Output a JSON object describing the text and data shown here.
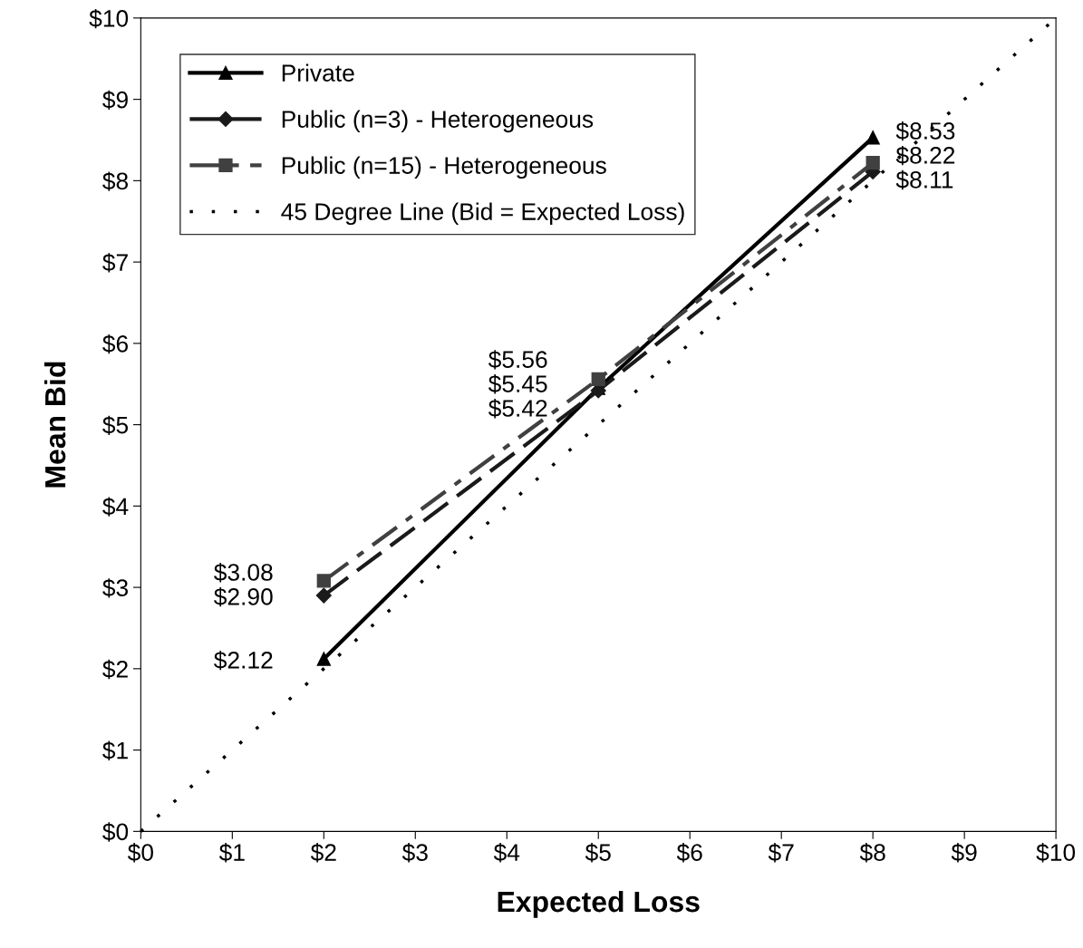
{
  "chart_data": {
    "type": "line",
    "xlabel": "Expected Loss",
    "ylabel": "Mean Bid",
    "xlim": [
      0,
      10
    ],
    "ylim": [
      0,
      10
    ],
    "xticks": [
      {
        "value": 0,
        "label": "$0"
      },
      {
        "value": 1,
        "label": "$1"
      },
      {
        "value": 2,
        "label": "$2"
      },
      {
        "value": 3,
        "label": "$3"
      },
      {
        "value": 4,
        "label": "$4"
      },
      {
        "value": 5,
        "label": "$5"
      },
      {
        "value": 6,
        "label": "$6"
      },
      {
        "value": 7,
        "label": "$7"
      },
      {
        "value": 8,
        "label": "$8"
      },
      {
        "value": 9,
        "label": "$9"
      },
      {
        "value": 10,
        "label": "$10"
      }
    ],
    "yticks": [
      {
        "value": 0,
        "label": "$0"
      },
      {
        "value": 1,
        "label": "$1"
      },
      {
        "value": 2,
        "label": "$2"
      },
      {
        "value": 3,
        "label": "$3"
      },
      {
        "value": 4,
        "label": "$4"
      },
      {
        "value": 5,
        "label": "$5"
      },
      {
        "value": 6,
        "label": "$6"
      },
      {
        "value": 7,
        "label": "$7"
      },
      {
        "value": 8,
        "label": "$8"
      },
      {
        "value": 9,
        "label": "$9"
      },
      {
        "value": 10,
        "label": "$10"
      }
    ],
    "grid": false,
    "legend": "top left",
    "series": [
      {
        "name": "Private",
        "color": "#000000",
        "x": [
          2,
          5,
          8
        ],
        "values": [
          2.12,
          5.45,
          8.53
        ],
        "marker": "triangle",
        "line_style": "solid",
        "value_labels": [
          "$2.12",
          "$5.45",
          "$8.53"
        ]
      },
      {
        "name": "Public (n=3) - Heterogeneous",
        "color": "#1a1a1a",
        "x": [
          2,
          5,
          8
        ],
        "values": [
          2.9,
          5.42,
          8.11
        ],
        "marker": "diamond",
        "line_style": "dashed",
        "value_labels": [
          "$2.90",
          "$5.42",
          "$8.11"
        ]
      },
      {
        "name": "Public (n=15) - Heterogeneous",
        "color": "#404040",
        "x": [
          2,
          5,
          8
        ],
        "values": [
          3.08,
          5.56,
          8.22
        ],
        "marker": "square",
        "line_style": "dashdot",
        "value_labels": [
          "$3.08",
          "$5.56",
          "$8.22"
        ]
      },
      {
        "name": "45 Degree Line (Bid = Expected Loss)",
        "color": "#000000",
        "x": [
          0,
          10
        ],
        "values": [
          0,
          10
        ],
        "marker": "none",
        "line_style": "dotted"
      }
    ]
  }
}
